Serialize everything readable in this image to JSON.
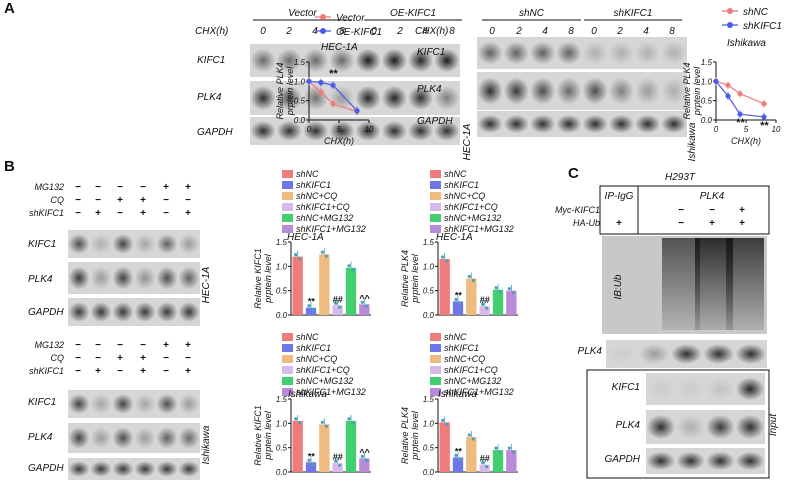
{
  "panel_letters": [
    "A",
    "B",
    "C"
  ],
  "colors": {
    "red": "#e8333a",
    "blue": "#4d5ce6",
    "shNC": "#ef7b7b",
    "shKIFC1": "#6f77e8",
    "shNC_CQ": "#efbb80",
    "shKIFC1_CQ": "#d9b8ec",
    "shNC_MG132": "#43cf6f",
    "shKIFC1_MG132": "#b98bd9",
    "dot": "#4aa3b5"
  },
  "A": {
    "left": {
      "cell_line": "HEC-1A",
      "row_label": "CHX(h)",
      "groups": [
        "Vector",
        "OE-KIFC1"
      ],
      "timepoints": [
        "0",
        "2",
        "4",
        "8",
        "0",
        "2",
        "4",
        "8"
      ],
      "blot_labels": [
        "KIFC1",
        "PLK4",
        "GAPDH"
      ]
    },
    "right": {
      "cell_line": "Ishikawa",
      "row_label": "CHX(h)",
      "groups": [
        "shNC",
        "shKIFC1"
      ],
      "timepoints": [
        "0",
        "2",
        "4",
        "8",
        "0",
        "2",
        "4",
        "8"
      ],
      "blot_labels": [
        "KIFC1",
        "PLK4",
        "GAPDH"
      ]
    }
  },
  "B": {
    "treat_labels": [
      "MG132",
      "CQ",
      "shKIFC1"
    ],
    "treat_signs": [
      [
        "−",
        "−",
        "−",
        "−",
        "+",
        "+"
      ],
      [
        "−",
        "−",
        "+",
        "+",
        "−",
        "−"
      ],
      [
        "−",
        "+",
        "−",
        "+",
        "−",
        "+"
      ]
    ],
    "blot_labels": [
      "KIFC1",
      "PLK4",
      "GAPDH"
    ],
    "cell_lines": [
      "HEC-1A",
      "Ishikawa"
    ],
    "legend": [
      "shNC",
      "shKIFC1",
      "shNC+CQ",
      "shKIFC1+CQ",
      "shNC+MG132",
      "shKIFC1+MG132"
    ]
  },
  "C": {
    "cell_line": "H293T",
    "ip_labels": [
      "IP-IgG",
      "PLK4"
    ],
    "treat_labels": [
      "Myc-KIFC1",
      "HA-Ub"
    ],
    "treat_signs": [
      [
        "",
        "−",
        "−",
        "+"
      ],
      [
        "+",
        "−",
        "+",
        "+"
      ]
    ],
    "blot_labels": [
      "IB:Ub",
      "PLK4",
      "KIFC1",
      "PLK4",
      "GAPDH"
    ],
    "input_label": "Input"
  },
  "chart_data": [
    {
      "type": "line",
      "title": "",
      "annotation": "HEC-1A",
      "xlabel": "CHX(h)",
      "ylabel": "Relative PLK4 prptein level",
      "x": [
        0,
        2,
        4,
        8
      ],
      "xticks": [
        "0",
        "5",
        "10"
      ],
      "ylim": [
        0.0,
        1.5
      ],
      "yticks": [
        "0.0",
        "0.5",
        "1.0",
        "1.5"
      ],
      "series": [
        {
          "name": "Vector",
          "color": "#ef7b7b",
          "values": [
            1.0,
            0.72,
            0.42,
            0.22
          ]
        },
        {
          "name": "OE-KIFC1",
          "color": "#4d5ce6",
          "values": [
            1.0,
            0.97,
            0.9,
            0.24
          ]
        }
      ],
      "significance": [
        {
          "x": 4,
          "label": "**"
        }
      ]
    },
    {
      "type": "line",
      "title": "",
      "annotation": "Ishikawa",
      "xlabel": "CHX(h)",
      "ylabel": "Relative PLK4 prptein level",
      "x": [
        0,
        2,
        4,
        8
      ],
      "xticks": [
        "0",
        "5",
        "10"
      ],
      "ylim": [
        0.0,
        1.5
      ],
      "yticks": [
        "0.0",
        "0.5",
        "1.0",
        "1.5"
      ],
      "series": [
        {
          "name": "shNC",
          "color": "#ef7b7b",
          "values": [
            1.0,
            0.9,
            0.68,
            0.42
          ]
        },
        {
          "name": "shKIFC1",
          "color": "#4d5ce6",
          "values": [
            1.0,
            0.62,
            0.15,
            0.08
          ]
        }
      ],
      "significance": [
        {
          "x": 4,
          "label": "**"
        },
        {
          "x": 8,
          "label": "**"
        }
      ]
    },
    {
      "type": "bar",
      "annotation": "HEC-1A",
      "ylabel": "Relative KIFC1 prptein level",
      "ylim": [
        0.0,
        1.5
      ],
      "yticks": [
        "0.0",
        "0.5",
        "1.0",
        "1.5"
      ],
      "categories": [
        "shNC",
        "shKIFC1",
        "shNC+CQ",
        "shKIFC1+CQ",
        "shNC+MG132",
        "shKIFC1+MG132"
      ],
      "values": [
        1.2,
        0.15,
        1.25,
        0.2,
        0.97,
        0.22
      ],
      "marks": [
        "",
        "**",
        "",
        "##",
        "",
        "^^"
      ]
    },
    {
      "type": "bar",
      "annotation": "HEC-1A",
      "ylabel": "Relative PLK4 prptein level",
      "ylim": [
        0.0,
        1.5
      ],
      "yticks": [
        "0.0",
        "0.5",
        "1.0",
        "1.5"
      ],
      "categories": [
        "shNC",
        "shKIFC1",
        "shNC+CQ",
        "shKIFC1+CQ",
        "shNC+MG132",
        "shKIFC1+MG132"
      ],
      "values": [
        1.15,
        0.28,
        0.75,
        0.18,
        0.52,
        0.5
      ],
      "marks": [
        "",
        "**",
        "",
        "##",
        "",
        ""
      ]
    },
    {
      "type": "bar",
      "annotation": "Ishikawa",
      "ylabel": "Relative KIFC1 prptein level",
      "ylim": [
        0.0,
        1.5
      ],
      "yticks": [
        "0.0",
        "0.5",
        "1.0",
        "1.5"
      ],
      "categories": [
        "shNC",
        "shKIFC1",
        "shNC+CQ",
        "shKIFC1+CQ",
        "shNC+MG132",
        "shKIFC1+MG132"
      ],
      "values": [
        1.05,
        0.2,
        0.98,
        0.18,
        1.05,
        0.28
      ],
      "marks": [
        "",
        "**",
        "",
        "##",
        "",
        "^^"
      ]
    },
    {
      "type": "bar",
      "annotation": "Ishikawa",
      "ylabel": "Relative PLK4 prptein level",
      "ylim": [
        0.0,
        1.5
      ],
      "yticks": [
        "0.0",
        "0.5",
        "1.0",
        "1.5"
      ],
      "categories": [
        "shNC",
        "shKIFC1",
        "shNC+CQ",
        "shKIFC1+CQ",
        "shNC+MG132",
        "shKIFC1+MG132"
      ],
      "values": [
        1.02,
        0.3,
        0.72,
        0.15,
        0.45,
        0.45
      ],
      "marks": [
        "",
        "**",
        "",
        "##",
        "",
        ""
      ]
    }
  ]
}
